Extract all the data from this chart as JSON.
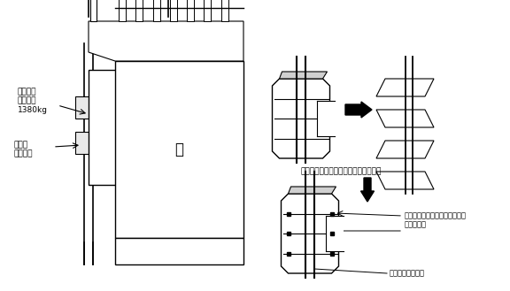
{
  "bg_color": "#ffffff",
  "line_color": "#000000",
  "gray_color": "#c0c0c0",
  "dark_gray": "#808080",
  "text_color": "#000000",
  "label_counter_weight": "カウンタ\nウェイト\n1380kg",
  "label_guide_box": "ガイド\nボックス",
  "label_扉": "扉",
  "label_top": "ガイドボックスにひっかかり動作不良",
  "label_weight_alt": "ウェイトを交互に向きをかえて\n積み重ねる",
  "label_weld": "ずれ止めの点溶接"
}
